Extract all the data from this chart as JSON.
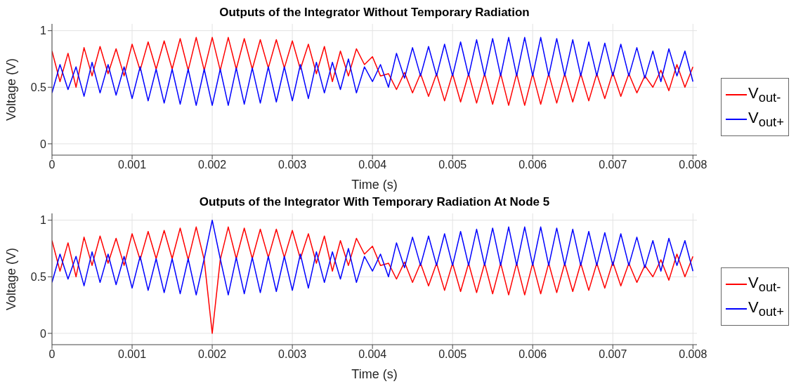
{
  "chart_data": [
    {
      "type": "line",
      "title": "Outputs of the Integrator Without Temporary Radiation",
      "xlabel": "Time (s)",
      "ylabel": "Voltage (V)",
      "x": [
        0,
        0.0001,
        0.0002,
        0.0003,
        0.0004,
        0.0005,
        0.0006,
        0.0007,
        0.0008,
        0.0009,
        0.001,
        0.0011,
        0.0012,
        0.0013,
        0.0014,
        0.0015,
        0.0016,
        0.0017,
        0.0018,
        0.0019,
        0.002,
        0.0021,
        0.0022,
        0.0023,
        0.0024,
        0.0025,
        0.0026,
        0.0027,
        0.0028,
        0.0029,
        0.003,
        0.0031,
        0.0032,
        0.0033,
        0.0034,
        0.0035,
        0.0036,
        0.0037,
        0.0038,
        0.0039,
        0.004,
        0.0041,
        0.0042,
        0.0043,
        0.0044,
        0.0045,
        0.0046,
        0.0047,
        0.0048,
        0.0049,
        0.005,
        0.0051,
        0.0052,
        0.0053,
        0.0054,
        0.0055,
        0.0056,
        0.0057,
        0.0058,
        0.0059,
        0.006,
        0.0061,
        0.0062,
        0.0063,
        0.0064,
        0.0065,
        0.0066,
        0.0067,
        0.0068,
        0.0069,
        0.007,
        0.0071,
        0.0072,
        0.0073,
        0.0074,
        0.0075,
        0.0076,
        0.0077,
        0.0078,
        0.0079,
        0.008
      ],
      "series": [
        {
          "name": "V$_{out-}$",
          "color": "#ff0000",
          "values": [
            0.82,
            0.55,
            0.8,
            0.5,
            0.85,
            0.6,
            0.86,
            0.62,
            0.84,
            0.6,
            0.88,
            0.65,
            0.9,
            0.66,
            0.91,
            0.66,
            0.93,
            0.65,
            0.94,
            0.65,
            0.94,
            0.65,
            0.94,
            0.66,
            0.93,
            0.66,
            0.92,
            0.67,
            0.92,
            0.67,
            0.91,
            0.66,
            0.88,
            0.62,
            0.86,
            0.55,
            0.82,
            0.6,
            0.84,
            0.7,
            0.77,
            0.6,
            0.62,
            0.48,
            0.63,
            0.45,
            0.62,
            0.42,
            0.62,
            0.38,
            0.62,
            0.37,
            0.62,
            0.36,
            0.62,
            0.35,
            0.62,
            0.34,
            0.62,
            0.34,
            0.62,
            0.35,
            0.62,
            0.36,
            0.62,
            0.37,
            0.62,
            0.38,
            0.62,
            0.4,
            0.63,
            0.42,
            0.62,
            0.45,
            0.6,
            0.5,
            0.65,
            0.47,
            0.7,
            0.5,
            0.68
          ]
        },
        {
          "name": "V$_{out+}$",
          "color": "#0000ff",
          "values": [
            0.45,
            0.7,
            0.48,
            0.68,
            0.42,
            0.72,
            0.45,
            0.7,
            0.43,
            0.68,
            0.4,
            0.68,
            0.38,
            0.66,
            0.36,
            0.66,
            0.35,
            0.66,
            0.34,
            0.66,
            0.34,
            0.66,
            0.34,
            0.67,
            0.35,
            0.67,
            0.36,
            0.68,
            0.37,
            0.68,
            0.38,
            0.7,
            0.4,
            0.72,
            0.45,
            0.72,
            0.48,
            0.75,
            0.45,
            0.68,
            0.55,
            0.7,
            0.5,
            0.8,
            0.58,
            0.85,
            0.6,
            0.86,
            0.6,
            0.88,
            0.6,
            0.9,
            0.6,
            0.92,
            0.6,
            0.93,
            0.6,
            0.94,
            0.6,
            0.94,
            0.6,
            0.94,
            0.6,
            0.93,
            0.6,
            0.92,
            0.6,
            0.9,
            0.6,
            0.89,
            0.6,
            0.88,
            0.6,
            0.85,
            0.58,
            0.82,
            0.55,
            0.84,
            0.6,
            0.82,
            0.55
          ]
        }
      ],
      "xlim": [
        0,
        0.00805
      ],
      "xticks": [
        0,
        0.001,
        0.002,
        0.003,
        0.004,
        0.005,
        0.006,
        0.007,
        0.008
      ],
      "ylim": [
        -0.1,
        1.06
      ],
      "yticks": [
        0,
        0.5,
        1
      ],
      "grid": true,
      "legend": "right"
    },
    {
      "type": "line",
      "title": "Outputs of the Integrator With Temporary Radiation At Node 5",
      "xlabel": "Time (s)",
      "ylabel": "Voltage (V)",
      "x": [
        0,
        0.0001,
        0.0002,
        0.0003,
        0.0004,
        0.0005,
        0.0006,
        0.0007,
        0.0008,
        0.0009,
        0.001,
        0.0011,
        0.0012,
        0.0013,
        0.0014,
        0.0015,
        0.0016,
        0.0017,
        0.0018,
        0.0019,
        0.002,
        0.0021,
        0.0022,
        0.0023,
        0.0024,
        0.0025,
        0.0026,
        0.0027,
        0.0028,
        0.0029,
        0.003,
        0.0031,
        0.0032,
        0.0033,
        0.0034,
        0.0035,
        0.0036,
        0.0037,
        0.0038,
        0.0039,
        0.004,
        0.0041,
        0.0042,
        0.0043,
        0.0044,
        0.0045,
        0.0046,
        0.0047,
        0.0048,
        0.0049,
        0.005,
        0.0051,
        0.0052,
        0.0053,
        0.0054,
        0.0055,
        0.0056,
        0.0057,
        0.0058,
        0.0059,
        0.006,
        0.0061,
        0.0062,
        0.0063,
        0.0064,
        0.0065,
        0.0066,
        0.0067,
        0.0068,
        0.0069,
        0.007,
        0.0071,
        0.0072,
        0.0073,
        0.0074,
        0.0075,
        0.0076,
        0.0077,
        0.0078,
        0.0079,
        0.008
      ],
      "series": [
        {
          "name": "V$_{out-}$",
          "color": "#ff0000",
          "values": [
            0.82,
            0.55,
            0.8,
            0.5,
            0.85,
            0.6,
            0.86,
            0.62,
            0.84,
            0.6,
            0.88,
            0.65,
            0.9,
            0.66,
            0.91,
            0.66,
            0.93,
            0.65,
            0.94,
            0.65,
            0.0,
            0.65,
            0.94,
            0.66,
            0.93,
            0.66,
            0.92,
            0.67,
            0.92,
            0.67,
            0.91,
            0.66,
            0.88,
            0.62,
            0.86,
            0.55,
            0.82,
            0.6,
            0.84,
            0.7,
            0.77,
            0.6,
            0.62,
            0.48,
            0.63,
            0.45,
            0.62,
            0.42,
            0.62,
            0.38,
            0.62,
            0.37,
            0.62,
            0.36,
            0.62,
            0.35,
            0.62,
            0.34,
            0.62,
            0.34,
            0.62,
            0.35,
            0.62,
            0.36,
            0.62,
            0.37,
            0.62,
            0.38,
            0.62,
            0.4,
            0.63,
            0.42,
            0.62,
            0.45,
            0.6,
            0.5,
            0.65,
            0.47,
            0.7,
            0.5,
            0.68
          ]
        },
        {
          "name": "V$_{out+}$",
          "color": "#0000ff",
          "values": [
            0.45,
            0.7,
            0.48,
            0.68,
            0.42,
            0.72,
            0.45,
            0.7,
            0.43,
            0.68,
            0.4,
            0.68,
            0.38,
            0.66,
            0.36,
            0.66,
            0.35,
            0.66,
            0.34,
            0.66,
            1.0,
            0.66,
            0.34,
            0.67,
            0.35,
            0.67,
            0.36,
            0.68,
            0.37,
            0.68,
            0.38,
            0.7,
            0.4,
            0.72,
            0.45,
            0.72,
            0.48,
            0.75,
            0.45,
            0.68,
            0.55,
            0.7,
            0.5,
            0.8,
            0.58,
            0.85,
            0.6,
            0.86,
            0.6,
            0.88,
            0.6,
            0.9,
            0.6,
            0.92,
            0.6,
            0.93,
            0.6,
            0.94,
            0.6,
            0.94,
            0.6,
            0.94,
            0.6,
            0.93,
            0.6,
            0.92,
            0.6,
            0.9,
            0.6,
            0.89,
            0.6,
            0.88,
            0.6,
            0.85,
            0.58,
            0.82,
            0.55,
            0.84,
            0.6,
            0.82,
            0.55
          ]
        }
      ],
      "xlim": [
        0,
        0.00805
      ],
      "xticks": [
        0,
        0.001,
        0.002,
        0.003,
        0.004,
        0.005,
        0.006,
        0.007,
        0.008
      ],
      "ylim": [
        -0.1,
        1.06
      ],
      "yticks": [
        0,
        0.5,
        1
      ],
      "grid": true,
      "legend": "right"
    }
  ]
}
